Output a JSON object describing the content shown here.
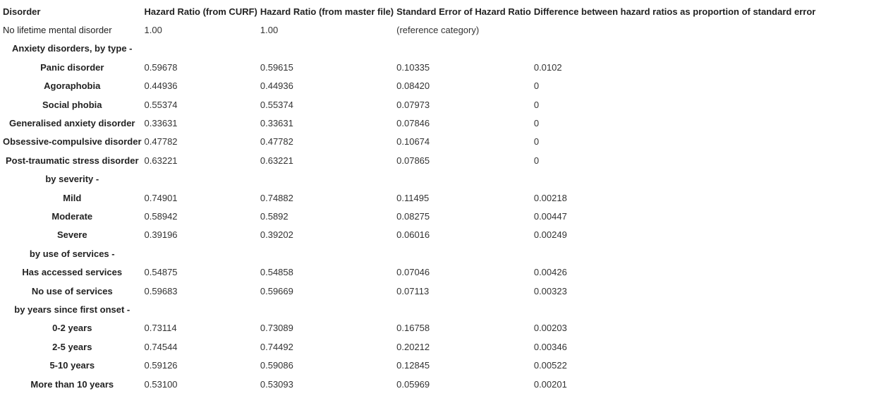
{
  "table": {
    "headers": [
      "Disorder",
      "Hazard Ratio (from CURF)",
      "Hazard Ratio (from master file)",
      "Standard Error of Hazard Ratio",
      "Difference between hazard ratios as proportion of standard error"
    ],
    "rows": [
      {
        "label": "No lifetime mental disorder",
        "bold": false,
        "values": [
          "1.00",
          "1.00",
          "(reference category)",
          ""
        ]
      },
      {
        "label": "Anxiety disorders, by type -",
        "bold": true,
        "values": [
          "",
          "",
          "",
          ""
        ]
      },
      {
        "label": "Panic disorder",
        "bold": true,
        "values": [
          "0.59678",
          "0.59615",
          "0.10335",
          "0.0102"
        ]
      },
      {
        "label": "Agoraphobia",
        "bold": true,
        "values": [
          "0.44936",
          "0.44936",
          "0.08420",
          "0"
        ]
      },
      {
        "label": "Social phobia",
        "bold": true,
        "values": [
          "0.55374",
          "0.55374",
          "0.07973",
          "0"
        ]
      },
      {
        "label": "Generalised anxiety disorder",
        "bold": true,
        "values": [
          "0.33631",
          "0.33631",
          "0.07846",
          "0"
        ]
      },
      {
        "label": "Obsessive-compulsive disorder",
        "bold": true,
        "values": [
          "0.47782",
          "0.47782",
          "0.10674",
          "0"
        ]
      },
      {
        "label": "Post-traumatic stress disorder",
        "bold": true,
        "values": [
          "0.63221",
          "0.63221",
          "0.07865",
          "0"
        ]
      },
      {
        "label": "by severity -",
        "bold": true,
        "values": [
          "",
          "",
          "",
          ""
        ]
      },
      {
        "label": "Mild",
        "bold": true,
        "values": [
          "0.74901",
          "0.74882",
          "0.11495",
          "0.00218"
        ]
      },
      {
        "label": "Moderate",
        "bold": true,
        "values": [
          "0.58942",
          "0.5892",
          "0.08275",
          "0.00447"
        ]
      },
      {
        "label": "Severe",
        "bold": true,
        "values": [
          "0.39196",
          "0.39202",
          "0.06016",
          "0.00249"
        ]
      },
      {
        "label": "by use of services -",
        "bold": true,
        "values": [
          "",
          "",
          "",
          ""
        ]
      },
      {
        "label": "Has accessed services",
        "bold": true,
        "values": [
          "0.54875",
          "0.54858",
          "0.07046",
          "0.00426"
        ]
      },
      {
        "label": "No use of services",
        "bold": true,
        "values": [
          "0.59683",
          "0.59669",
          "0.07113",
          "0.00323"
        ]
      },
      {
        "label": "by years since first onset -",
        "bold": true,
        "values": [
          "",
          "",
          "",
          ""
        ]
      },
      {
        "label": "0-2 years",
        "bold": true,
        "values": [
          "0.73114",
          "0.73089",
          "0.16758",
          "0.00203"
        ]
      },
      {
        "label": "2-5 years",
        "bold": true,
        "values": [
          "0.74544",
          "0.74492",
          "0.20212",
          "0.00346"
        ]
      },
      {
        "label": "5-10 years",
        "bold": true,
        "values": [
          "0.59126",
          "0.59086",
          "0.12845",
          "0.00522"
        ]
      },
      {
        "label": "More than 10 years",
        "bold": true,
        "values": [
          "0.53100",
          "0.53093",
          "0.05969",
          "0.00201"
        ]
      }
    ]
  }
}
